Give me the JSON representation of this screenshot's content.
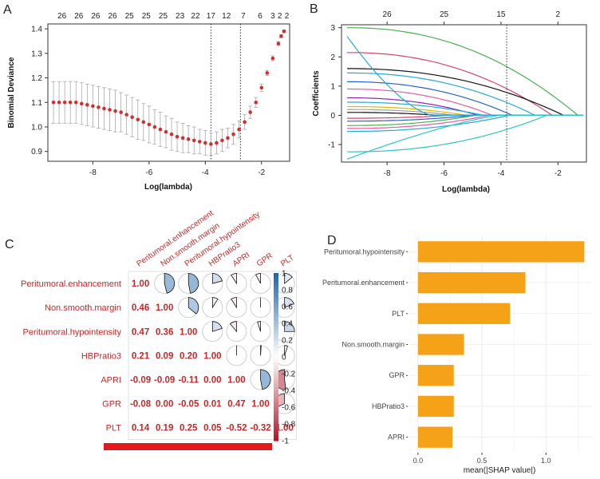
{
  "panels": [
    "A",
    "B",
    "C",
    "D"
  ],
  "colors": {
    "red": "#d32f2f",
    "orange": "#f5a219",
    "grey": "#888888",
    "cvErr": "#aaaaaa"
  },
  "chart_data": [
    {
      "panel": "A",
      "type": "scatter",
      "title": "",
      "xlabel": "Log(lambda)",
      "ylabel": "Binomial Deviance",
      "xlim": [
        -9.6,
        -1.0
      ],
      "ylim": [
        0.86,
        1.42
      ],
      "xticks": [
        -8,
        -6,
        -4,
        -2
      ],
      "yticks": [
        0.9,
        1.0,
        1.1,
        1.2,
        1.3,
        1.4
      ],
      "top_axis_labels": [
        "26",
        "26",
        "26",
        "26",
        "25",
        "25",
        "25",
        "23",
        "22",
        "17",
        "12",
        "7",
        "6",
        "3",
        "2",
        "2"
      ],
      "top_axis_positions": [
        -9.1,
        -8.5,
        -7.9,
        -7.3,
        -6.7,
        -6.1,
        -5.5,
        -4.9,
        -4.35,
        -3.8,
        -3.25,
        -2.65,
        -2.05,
        -1.6,
        -1.35,
        -1.1
      ],
      "lambda_min": -3.8,
      "lambda_1se": -2.75,
      "x": [
        -9.4,
        -9.2,
        -9.0,
        -8.8,
        -8.6,
        -8.4,
        -8.2,
        -8.0,
        -7.8,
        -7.6,
        -7.4,
        -7.2,
        -7.0,
        -6.8,
        -6.6,
        -6.4,
        -6.2,
        -6.0,
        -5.8,
        -5.6,
        -5.4,
        -5.2,
        -5.0,
        -4.8,
        -4.6,
        -4.4,
        -4.2,
        -4.0,
        -3.8,
        -3.6,
        -3.4,
        -3.2,
        -3.0,
        -2.8,
        -2.6,
        -2.4,
        -2.2,
        -2.0,
        -1.8,
        -1.6,
        -1.4,
        -1.3,
        -1.2
      ],
      "y": [
        1.1,
        1.1,
        1.1,
        1.1,
        1.1,
        1.095,
        1.09,
        1.085,
        1.08,
        1.075,
        1.07,
        1.065,
        1.06,
        1.05,
        1.04,
        1.03,
        1.02,
        1.01,
        1.0,
        0.99,
        0.98,
        0.97,
        0.96,
        0.955,
        0.95,
        0.945,
        0.94,
        0.935,
        0.93,
        0.935,
        0.945,
        0.955,
        0.97,
        0.99,
        1.02,
        1.06,
        1.1,
        1.16,
        1.22,
        1.28,
        1.34,
        1.37,
        1.39
      ],
      "err": [
        0.085,
        0.085,
        0.085,
        0.085,
        0.085,
        0.085,
        0.085,
        0.085,
        0.085,
        0.085,
        0.085,
        0.085,
        0.08,
        0.08,
        0.08,
        0.08,
        0.075,
        0.075,
        0.07,
        0.07,
        0.065,
        0.065,
        0.06,
        0.06,
        0.055,
        0.055,
        0.05,
        0.05,
        0.045,
        0.045,
        0.045,
        0.04,
        0.04,
        0.035,
        0.03,
        0.025,
        0.02,
        0.015,
        0.01,
        0.01,
        0.008,
        0.006,
        0.005
      ]
    },
    {
      "panel": "B",
      "type": "line",
      "xlabel": "Log(lambda)",
      "ylabel": "Coefficients",
      "xlim": [
        -9.6,
        -1.0
      ],
      "ylim": [
        -1.6,
        3.1
      ],
      "xticks": [
        -8,
        -6,
        -4,
        -2
      ],
      "yticks": [
        -1,
        0,
        1,
        2,
        3
      ],
      "top_axis_labels": [
        "26",
        "25",
        "15",
        "2"
      ],
      "top_axis_positions": [
        -8.0,
        -6.0,
        -4.0,
        -2.0
      ],
      "vline": -3.8,
      "series": [
        {
          "name": "s1",
          "color": "#4caf50",
          "start": 3.0,
          "end_x": -1.3
        },
        {
          "name": "s2",
          "color": "#d6456b",
          "start": 2.15,
          "end_x": -2.2
        },
        {
          "name": "s3",
          "color": "#111111",
          "start": 1.6,
          "end_x": -1.8
        },
        {
          "name": "s4",
          "color": "#29a9d6",
          "start": 1.45,
          "end_x": -2.8
        },
        {
          "name": "s5",
          "color": "#2962c9",
          "start": 1.15,
          "end_x": -3.6
        },
        {
          "name": "s6",
          "color": "#e05fa0",
          "start": 0.9,
          "end_x": -4.3
        },
        {
          "name": "s7",
          "color": "#8e24aa",
          "start": 0.6,
          "end_x": -4.8
        },
        {
          "name": "s8",
          "color": "#29a9d6",
          "start": 0.45,
          "end_x": -4.6
        },
        {
          "name": "s9",
          "color": "#e6b500",
          "start": 0.3,
          "end_x": -5.2
        },
        {
          "name": "s10",
          "color": "#9e9e9e",
          "start": 0.2,
          "end_x": -5.6
        },
        {
          "name": "s11",
          "color": "#111111",
          "start": 0.1,
          "end_x": -6.2
        },
        {
          "name": "s12",
          "color": "#d6456b",
          "start": -0.1,
          "end_x": -5.8
        },
        {
          "name": "s13",
          "color": "#2962c9",
          "start": -0.2,
          "end_x": -5.0
        },
        {
          "name": "s14",
          "color": "#4caf50",
          "start": -0.35,
          "end_x": -4.9
        },
        {
          "name": "s15",
          "color": "#e05fa0",
          "start": -0.45,
          "end_x": -4.4
        },
        {
          "name": "s16",
          "color": "#29a9d6",
          "start": -0.55,
          "end_x": -3.7
        },
        {
          "name": "s17",
          "color": "#2ec4c4",
          "start": -1.25,
          "end_x": -2.4
        },
        {
          "name": "s18",
          "color": "#29a9d6",
          "start": 2.7,
          "end_x": -6.4,
          "shape": "dip"
        },
        {
          "name": "s19",
          "color": "#2ec4c4",
          "start": -1.5,
          "end_x": -4.0,
          "shape": "rise"
        }
      ]
    },
    {
      "panel": "C",
      "type": "heatmap",
      "variables": [
        "Peritumoral.enhancement",
        "Non.smooth.margin",
        "Peritumoral.hypointensity",
        "HBPratio3",
        "APRI",
        "GPR",
        "PLT"
      ],
      "row_labels": [
        "Peritumoral.enhancement",
        "Non.smooth.margin",
        "Peritumoral.hypointensity",
        "HBPratio3",
        "APRI",
        "GPR",
        "PLT"
      ],
      "col_labels": [
        "Peritumoral.enhancement",
        "Non.smooth.margin",
        "Peritumoral.hypointensity",
        "HBPratio3",
        "APRI",
        "GPR",
        "PLT"
      ],
      "matrix": [
        [
          1.0,
          0.46,
          0.47,
          0.21,
          -0.09,
          -0.08,
          0.14
        ],
        [
          0.46,
          1.0,
          0.36,
          0.09,
          -0.09,
          0.0,
          0.19
        ],
        [
          0.47,
          0.36,
          1.0,
          0.2,
          -0.11,
          -0.05,
          0.25
        ],
        [
          0.21,
          0.09,
          0.2,
          1.0,
          0.0,
          0.01,
          0.05
        ],
        [
          -0.09,
          -0.09,
          -0.11,
          0.0,
          1.0,
          0.47,
          -0.52
        ],
        [
          -0.08,
          0.0,
          -0.05,
          0.01,
          0.47,
          1.0,
          -0.32
        ],
        [
          0.14,
          0.19,
          0.25,
          0.05,
          -0.52,
          -0.32,
          1.0
        ]
      ],
      "lower_text": [
        [
          "1.00",
          "",
          "",
          "",
          "",
          "",
          ""
        ],
        [
          "0.46",
          "1.00",
          "",
          "",
          "",
          "",
          ""
        ],
        [
          "0.47",
          "0.36",
          "1.00",
          "",
          "",
          "",
          ""
        ],
        [
          "0.21",
          "0.09",
          "0.20",
          "1.00",
          "",
          "",
          ""
        ],
        [
          "-0.09",
          "-0.09",
          "-0.11",
          "0.00",
          "1.00",
          "",
          ""
        ],
        [
          "-0.08",
          "0.00",
          "-0.05",
          "0.01",
          "0.47",
          "1.00",
          ""
        ],
        [
          "0.14",
          "0.19",
          "0.25",
          "0.05",
          "-0.52",
          "-0.32",
          "1.00"
        ]
      ],
      "colorbar_ticks": [
        "1",
        "0.8",
        "0.6",
        "0.4",
        "0.2",
        "0",
        "-0.2",
        "-0.4",
        "-0.6",
        "-0.8",
        "-1"
      ],
      "colorbar_values": [
        1,
        0.8,
        0.6,
        0.4,
        0.2,
        0,
        -0.2,
        -0.4,
        -0.6,
        -0.8,
        -1
      ]
    },
    {
      "panel": "D",
      "type": "bar",
      "orientation": "horizontal",
      "categories": [
        "Peritumoral.hypointensity",
        "Peritumoral.enhancement",
        "PLT",
        "Non.smooth.margin",
        "GPR",
        "HBPratio3",
        "APRI"
      ],
      "values": [
        1.3,
        0.84,
        0.72,
        0.36,
        0.28,
        0.28,
        0.27
      ],
      "xlabel": "mean(|SHAP value|)",
      "xlim": [
        -0.08,
        1.36
      ],
      "xticks": [
        0.0,
        0.5,
        1.0
      ],
      "xtick_labels": [
        "0.0",
        "0.5",
        "1.0"
      ]
    }
  ]
}
